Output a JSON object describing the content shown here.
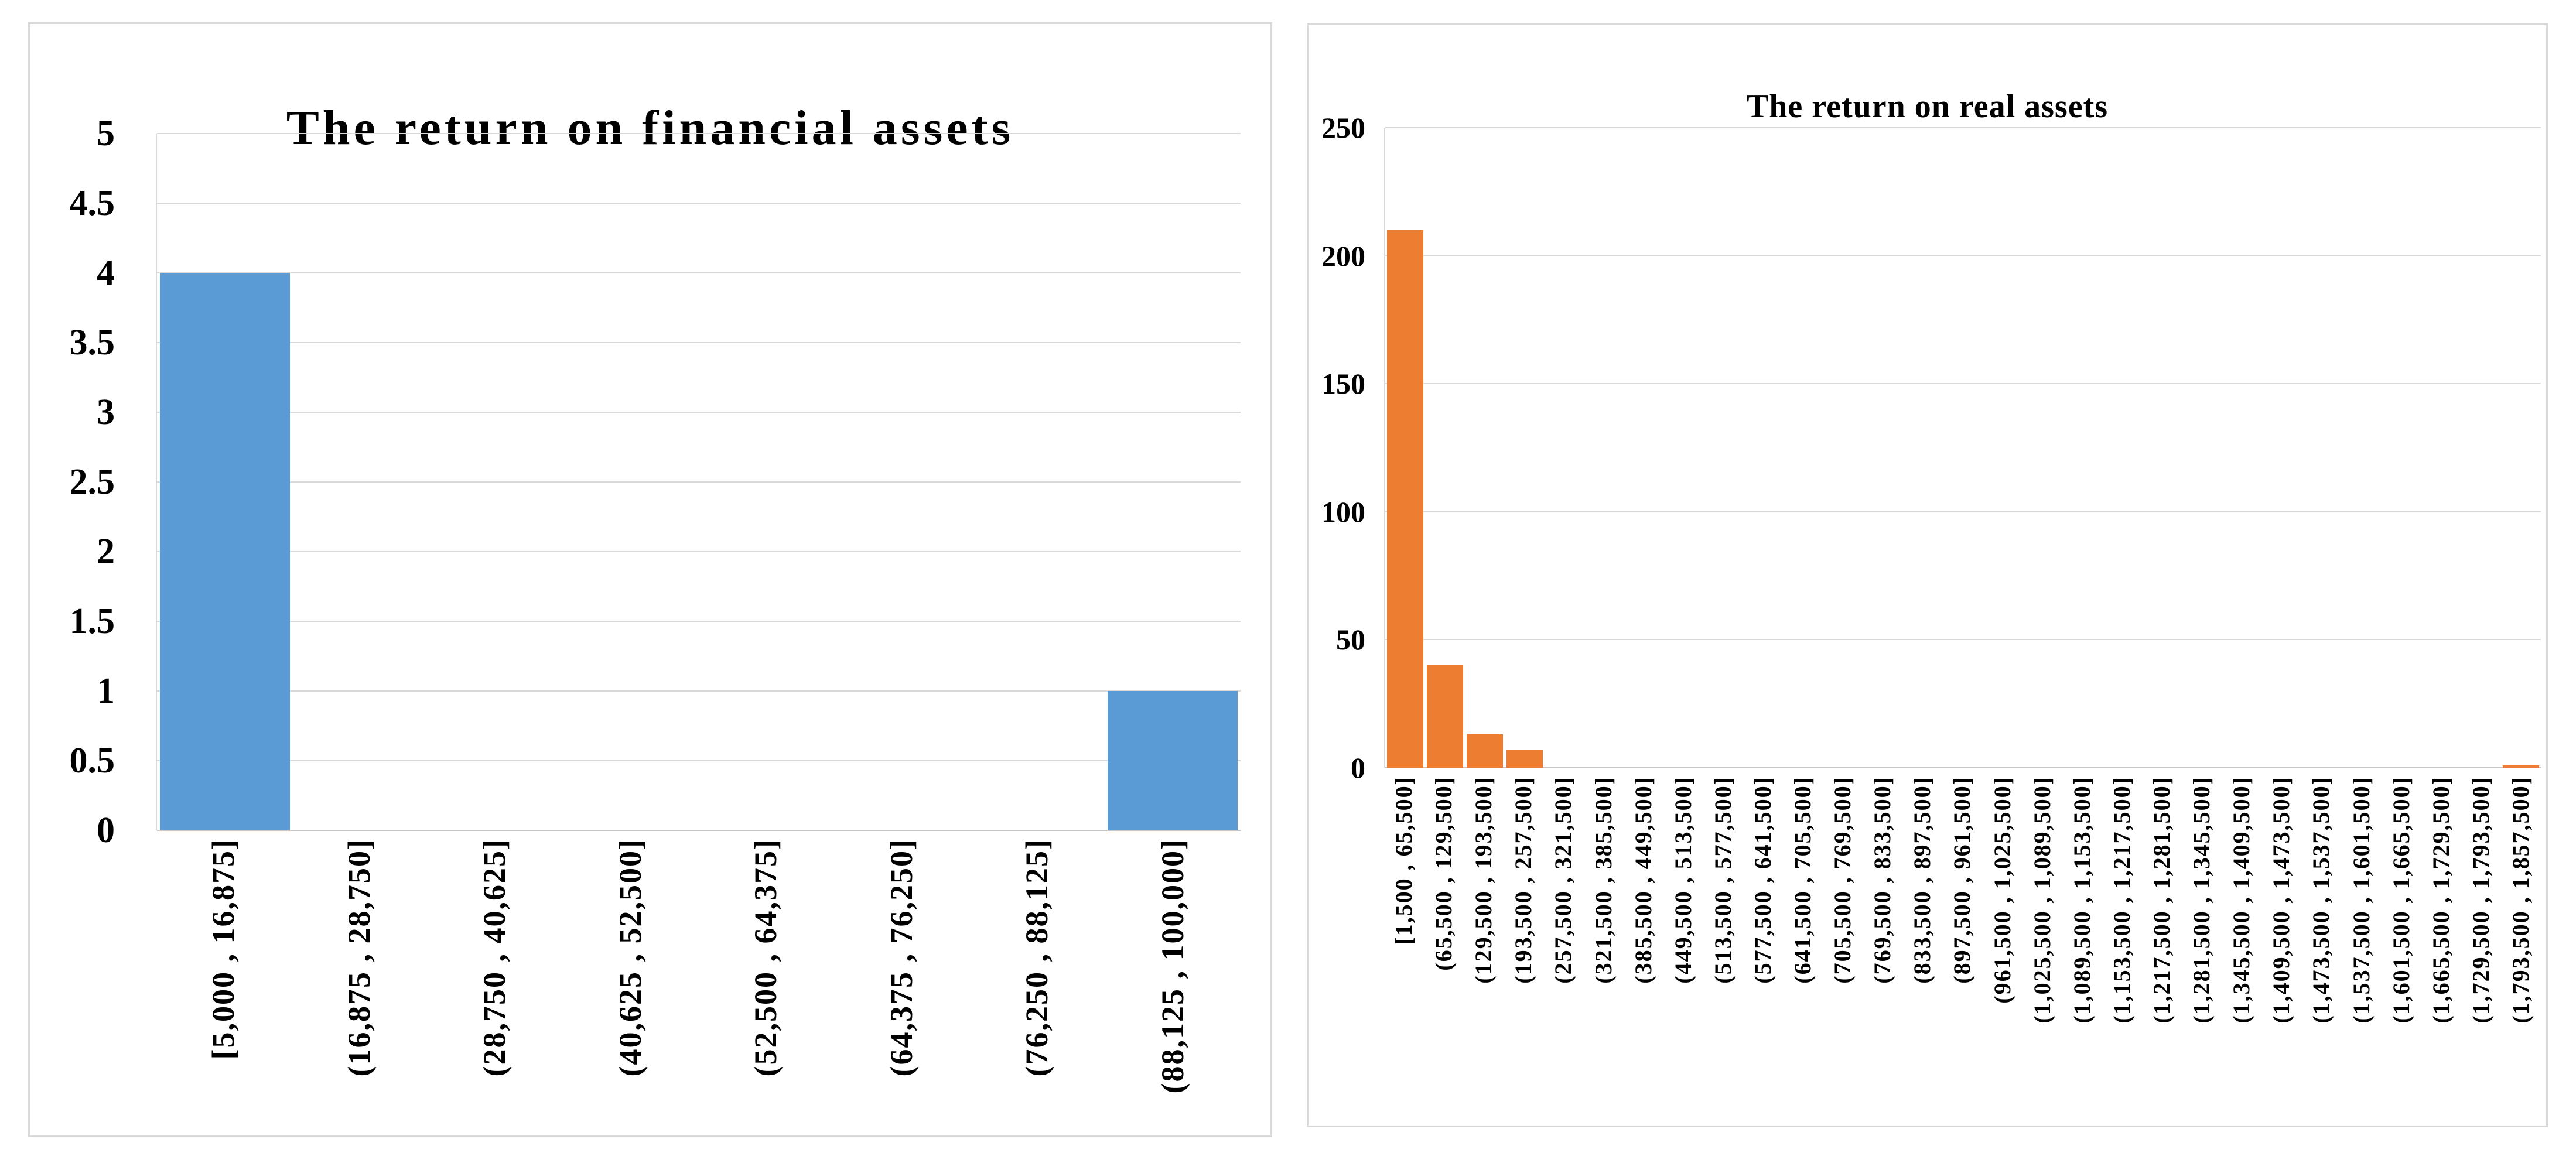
{
  "page": {
    "background_color": "#ffffff",
    "gridline_color": "#d9d9d9",
    "axis_line_color": "#c6c6c6"
  },
  "chart_data": [
    {
      "type": "bar",
      "title": "The return on financial assets",
      "xlabel": "",
      "ylabel": "",
      "legend_position": "none",
      "grid": true,
      "bar_color": "#5B9BD5",
      "ylim": [
        0,
        5
      ],
      "y_ticks": [
        "5",
        "4.5",
        "4",
        "3.5",
        "3",
        "2.5",
        "2",
        "1.5",
        "1",
        "0.5",
        "0"
      ],
      "categories": [
        "[5,000 , 16,875]",
        "(16,875 , 28,750]",
        "(28,750 , 40,625]",
        "(40,625 , 52,500]",
        "(52,500 , 64,375]",
        "(64,375 , 76,250]",
        "(76,250 , 88,125]",
        "(88,125 , 100,000]"
      ],
      "values": [
        4,
        0,
        0,
        0,
        0,
        0,
        0,
        1
      ]
    },
    {
      "type": "bar",
      "title": "The return on real assets",
      "xlabel": "",
      "ylabel": "",
      "legend_position": "none",
      "grid": true,
      "bar_color": "#ED7D31",
      "ylim": [
        0,
        250
      ],
      "y_ticks": [
        "250",
        "200",
        "150",
        "100",
        "50",
        "0"
      ],
      "categories": [
        "[1,500 , 65,500]",
        "(65,500 , 129,500]",
        "(129,500 , 193,500]",
        "(193,500 , 257,500]",
        "(257,500 , 321,500]",
        "(321,500 , 385,500]",
        "(385,500 , 449,500]",
        "(449,500 , 513,500]",
        "(513,500 , 577,500]",
        "(577,500 , 641,500]",
        "(641,500 , 705,500]",
        "(705,500 , 769,500]",
        "(769,500 , 833,500]",
        "(833,500 , 897,500]",
        "(897,500 , 961,500]",
        "(961,500 , 1,025,500]",
        "(1,025,500 , 1,089,500]",
        "(1,089,500 , 1,153,500]",
        "(1,153,500 , 1,217,500]",
        "(1,217,500 , 1,281,500]",
        "(1,281,500 , 1,345,500]",
        "(1,345,500 , 1,409,500]",
        "(1,409,500 , 1,473,500]",
        "(1,473,500 , 1,537,500]",
        "(1,537,500 , 1,601,500]",
        "(1,601,500 , 1,665,500]",
        "(1,665,500 , 1,729,500]",
        "(1,729,500 , 1,793,500]",
        "(1,793,500 , 1,857,500]"
      ],
      "values": [
        210,
        40,
        13,
        7,
        0,
        0,
        0,
        0,
        0,
        0,
        0,
        0,
        0,
        0,
        0,
        0,
        0,
        0,
        0,
        0,
        0,
        0,
        0,
        0,
        0,
        0,
        0,
        0,
        1
      ]
    }
  ]
}
